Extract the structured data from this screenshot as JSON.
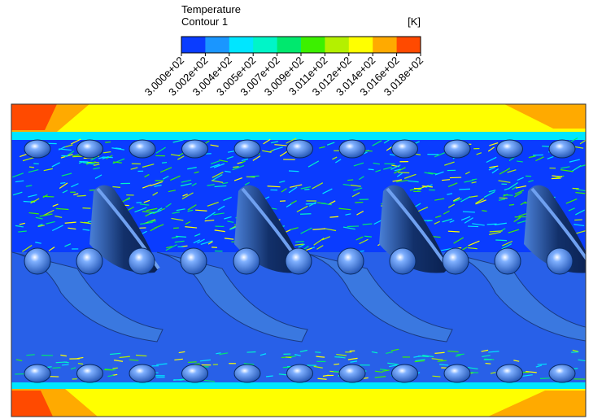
{
  "legend": {
    "title": "Temperature",
    "subtitle": "Contour 1",
    "unit": "[K]",
    "colors": [
      "#0a3cff",
      "#1a96ff",
      "#00e6ff",
      "#00f5c8",
      "#00e86e",
      "#3cf000",
      "#b4f000",
      "#ffff00",
      "#ffaa00",
      "#ff4a00"
    ],
    "tick_labels": [
      "3.000e+02",
      "3.002e+02",
      "3.004e+02",
      "3.005e+02",
      "3.007e+02",
      "3.009e+02",
      "3.011e+02",
      "3.012e+02",
      "3.014e+02",
      "3.016e+02",
      "3.018e+02"
    ]
  }
}
